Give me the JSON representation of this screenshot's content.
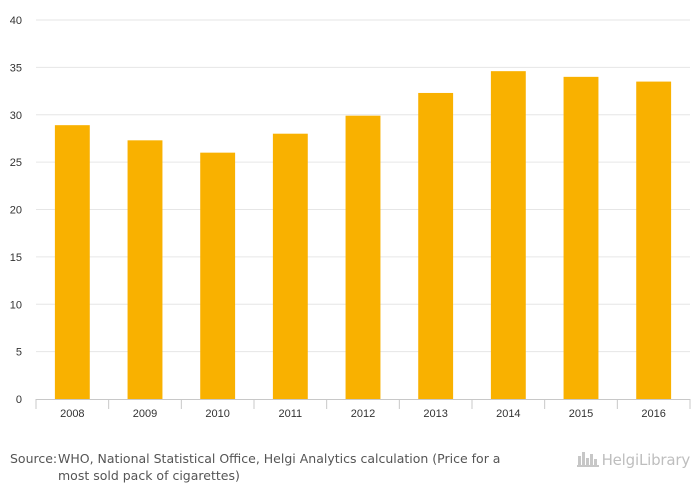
{
  "chart_data": {
    "type": "bar",
    "categories": [
      "2008",
      "2009",
      "2010",
      "2011",
      "2012",
      "2013",
      "2014",
      "2015",
      "2016"
    ],
    "values": [
      28.9,
      27.3,
      26.0,
      28.0,
      29.9,
      32.3,
      34.6,
      34.0,
      33.5
    ],
    "title": "",
    "xlabel": "",
    "ylabel": "",
    "ylim": [
      0,
      40
    ],
    "yticks": [
      0,
      5,
      10,
      15,
      20,
      25,
      30,
      35,
      40
    ],
    "grid": true,
    "legend": "none",
    "bar_color": "#f9b100"
  },
  "footer": {
    "source_label": "Source:",
    "source_text": "WHO, National Statistical Office, Helgi Analytics calculation (Price for a most sold pack of cigarettes)"
  },
  "logo": {
    "icon": "city-skyline-icon",
    "text": "HelgiLibrary"
  }
}
